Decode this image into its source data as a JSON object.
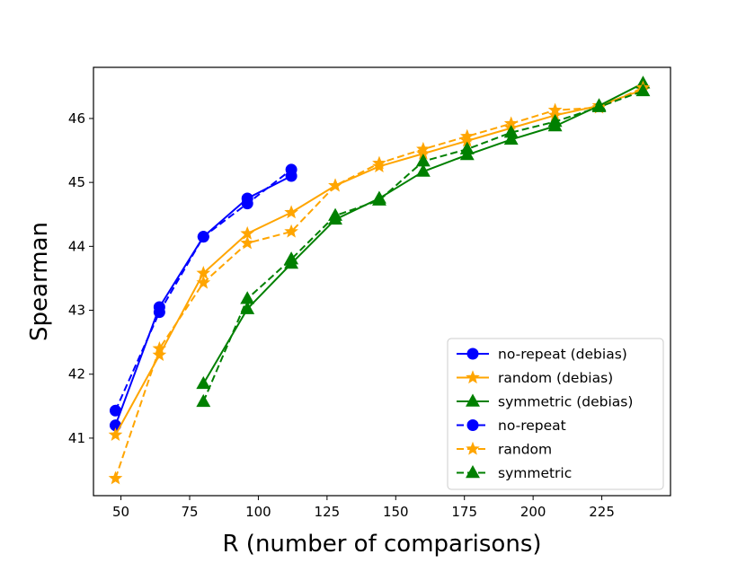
{
  "chart_data": {
    "type": "line",
    "title": "",
    "xlabel": "R (number of comparisons)",
    "ylabel": "Spearman",
    "xlim": [
      40,
      250
    ],
    "ylim": [
      40.1,
      46.8
    ],
    "xticks": [
      50,
      75,
      100,
      125,
      150,
      175,
      200,
      225
    ],
    "yticks": [
      41,
      42,
      43,
      44,
      45,
      46
    ],
    "grid": false,
    "legend_position": "lower-right",
    "series": [
      {
        "name": "no-repeat (debias)",
        "color": "#0000ff",
        "linestyle": "solid",
        "marker": "circle",
        "x": [
          48,
          64,
          80,
          96,
          112
        ],
        "y": [
          41.2,
          43.05,
          44.15,
          44.75,
          45.1
        ]
      },
      {
        "name": "random (debias)",
        "color": "#ffa500",
        "linestyle": "solid",
        "marker": "star",
        "x": [
          48,
          64,
          80,
          96,
          112,
          128,
          144,
          160,
          176,
          192,
          208,
          224,
          240
        ],
        "y": [
          41.05,
          42.3,
          43.58,
          44.2,
          44.53,
          44.95,
          45.25,
          45.45,
          45.65,
          45.85,
          46.05,
          46.2,
          46.45
        ]
      },
      {
        "name": "symmetric (debias)",
        "color": "#008000",
        "linestyle": "solid",
        "marker": "triangle",
        "x": [
          80,
          96,
          112,
          128,
          144,
          160,
          176,
          192,
          208,
          224,
          240
        ],
        "y": [
          41.85,
          43.02,
          43.73,
          44.42,
          44.75,
          45.17,
          45.43,
          45.67,
          45.88,
          46.2,
          46.55
        ]
      },
      {
        "name": "no-repeat",
        "color": "#0000ff",
        "linestyle": "dashed",
        "marker": "circle",
        "x": [
          48,
          64,
          80,
          96,
          112
        ],
        "y": [
          41.43,
          42.97,
          44.15,
          44.67,
          45.2
        ]
      },
      {
        "name": "random",
        "color": "#ffa500",
        "linestyle": "dashed",
        "marker": "star",
        "x": [
          48,
          64,
          80,
          96,
          112,
          128,
          144,
          160,
          176,
          192,
          208,
          224,
          240
        ],
        "y": [
          40.37,
          42.4,
          43.43,
          44.05,
          44.23,
          44.95,
          45.3,
          45.52,
          45.72,
          45.92,
          46.13,
          46.17,
          46.48
        ]
      },
      {
        "name": "symmetric",
        "color": "#008000",
        "linestyle": "dashed",
        "marker": "triangle",
        "x": [
          80,
          96,
          112,
          128,
          144,
          160,
          176,
          192,
          208,
          224,
          240
        ],
        "y": [
          41.57,
          43.18,
          43.8,
          44.48,
          44.72,
          45.33,
          45.52,
          45.78,
          45.95,
          46.18,
          46.43
        ]
      }
    ]
  }
}
